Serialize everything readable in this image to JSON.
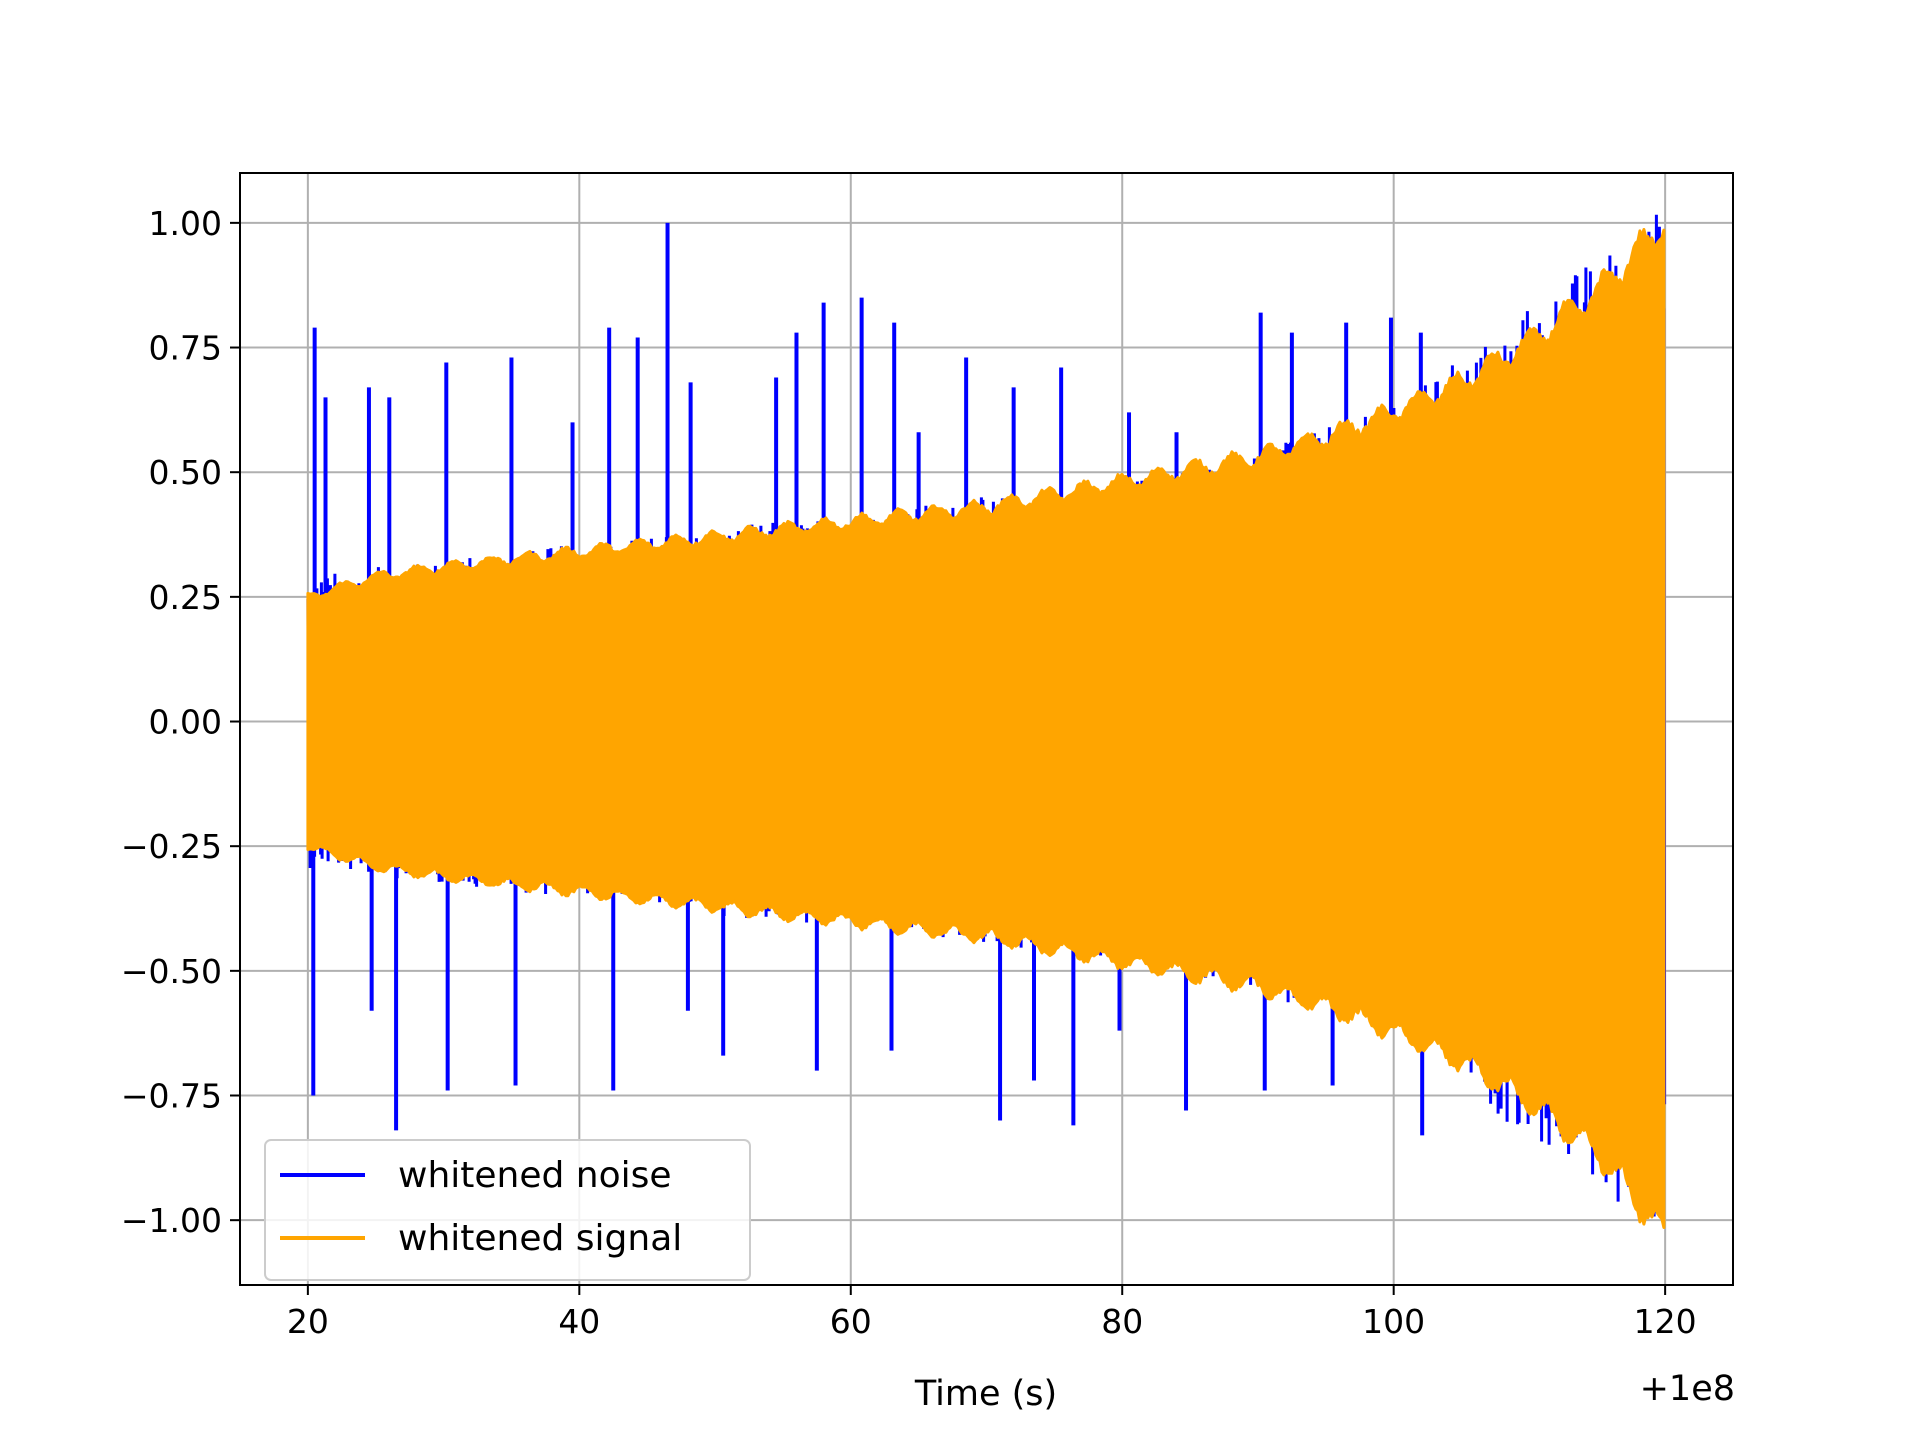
{
  "chart_data": {
    "type": "line",
    "title": "",
    "xlabel": "Time (s)",
    "ylabel": "",
    "x_offset_label": "+1e8",
    "xlim": [
      15,
      125
    ],
    "ylim": [
      -1.13,
      1.1
    ],
    "x_ticks": [
      20,
      40,
      60,
      80,
      100,
      120
    ],
    "x_tick_labels": [
      "20",
      "40",
      "60",
      "80",
      "100",
      "120"
    ],
    "y_ticks": [
      1.0,
      0.75,
      0.5,
      0.25,
      0.0,
      -0.25,
      -0.5,
      -0.75,
      -1.0
    ],
    "y_tick_labels": [
      "1.00",
      "0.75",
      "0.50",
      "0.25",
      "0.00",
      "−0.25",
      "−0.50",
      "−0.75",
      "−1.00"
    ],
    "grid": true,
    "legend": "lower-left",
    "series": [
      {
        "name": "whitened noise",
        "color": "#0000ff",
        "x_range": [
          20,
          120
        ],
        "envelope": {
          "x": [
            20,
            30,
            40,
            50,
            60,
            70,
            80,
            90,
            100,
            110,
            120
          ],
          "upper": [
            0.28,
            0.31,
            0.34,
            0.37,
            0.4,
            0.43,
            0.46,
            0.52,
            0.6,
            0.8,
            0.99
          ],
          "lower": [
            -0.28,
            -0.31,
            -0.34,
            -0.37,
            -0.4,
            -0.43,
            -0.46,
            -0.52,
            -0.6,
            -0.8,
            -0.99
          ]
        },
        "peaks": [
          {
            "x": 20.5,
            "y": 0.79
          },
          {
            "x": 21.3,
            "y": 0.65
          },
          {
            "x": 24.5,
            "y": 0.67
          },
          {
            "x": 26.0,
            "y": 0.65
          },
          {
            "x": 30.2,
            "y": 0.72
          },
          {
            "x": 35.0,
            "y": 0.73
          },
          {
            "x": 39.5,
            "y": 0.6
          },
          {
            "x": 42.2,
            "y": 0.79
          },
          {
            "x": 44.3,
            "y": 0.77
          },
          {
            "x": 46.5,
            "y": 1.0
          },
          {
            "x": 48.2,
            "y": 0.68
          },
          {
            "x": 54.5,
            "y": 0.69
          },
          {
            "x": 56.0,
            "y": 0.78
          },
          {
            "x": 58.0,
            "y": 0.84
          },
          {
            "x": 60.8,
            "y": 0.85
          },
          {
            "x": 63.2,
            "y": 0.8
          },
          {
            "x": 65.0,
            "y": 0.58
          },
          {
            "x": 68.5,
            "y": 0.73
          },
          {
            "x": 72.0,
            "y": 0.67
          },
          {
            "x": 75.5,
            "y": 0.71
          },
          {
            "x": 80.5,
            "y": 0.62
          },
          {
            "x": 84.0,
            "y": 0.58
          },
          {
            "x": 90.2,
            "y": 0.82
          },
          {
            "x": 92.5,
            "y": 0.78
          },
          {
            "x": 96.5,
            "y": 0.8
          },
          {
            "x": 99.8,
            "y": 0.81
          },
          {
            "x": 102.0,
            "y": 0.78
          },
          {
            "x": 20.4,
            "y": -0.75
          },
          {
            "x": 24.7,
            "y": -0.58
          },
          {
            "x": 26.5,
            "y": -0.82
          },
          {
            "x": 30.3,
            "y": -0.74
          },
          {
            "x": 35.3,
            "y": -0.73
          },
          {
            "x": 42.5,
            "y": -0.74
          },
          {
            "x": 48.0,
            "y": -0.58
          },
          {
            "x": 50.6,
            "y": -0.67
          },
          {
            "x": 57.5,
            "y": -0.7
          },
          {
            "x": 63.0,
            "y": -0.66
          },
          {
            "x": 71.0,
            "y": -0.8
          },
          {
            "x": 73.5,
            "y": -0.72
          },
          {
            "x": 76.4,
            "y": -0.81
          },
          {
            "x": 79.8,
            "y": -0.62
          },
          {
            "x": 84.7,
            "y": -0.78
          },
          {
            "x": 90.5,
            "y": -0.74
          },
          {
            "x": 95.5,
            "y": -0.73
          },
          {
            "x": 102.1,
            "y": -0.83
          }
        ]
      },
      {
        "name": "whitened signal",
        "color": "#ffa500",
        "x_range": [
          20,
          120
        ],
        "envelope": {
          "x": [
            20,
            25,
            30,
            40,
            50,
            60,
            70,
            80,
            90,
            95,
            100,
            105,
            110,
            115,
            120
          ],
          "upper": [
            0.25,
            0.29,
            0.31,
            0.34,
            0.37,
            0.4,
            0.43,
            0.48,
            0.53,
            0.57,
            0.62,
            0.68,
            0.76,
            0.86,
            1.0
          ],
          "lower": [
            -0.25,
            -0.29,
            -0.31,
            -0.34,
            -0.37,
            -0.4,
            -0.43,
            -0.48,
            -0.53,
            -0.57,
            -0.62,
            -0.68,
            -0.76,
            -0.86,
            -1.03
          ]
        }
      }
    ]
  }
}
